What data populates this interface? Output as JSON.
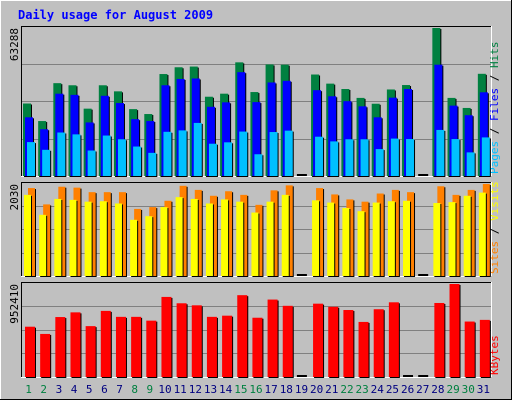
{
  "title": "Daily usage for August 2009",
  "colors": {
    "background": "#c0c0c0",
    "title": "#0000ff",
    "hits": "#008040",
    "files": "#0000ff",
    "pages": "#00c0ff",
    "visits": "#ffff00",
    "sites": "#ff8000",
    "kbytes": "#ff0000",
    "day_weekday": "#000080",
    "day_weekend": "#008040"
  },
  "chart_data": [
    {
      "type": "bar",
      "panel": "requests",
      "axis_max_label": "63288",
      "ylim": [
        0,
        63288
      ],
      "legend": [
        "Pages",
        "Files",
        "Hits"
      ],
      "categories": [
        "1",
        "2",
        "3",
        "4",
        "5",
        "6",
        "7",
        "8",
        "9",
        "10",
        "11",
        "12",
        "13",
        "14",
        "15",
        "16",
        "17",
        "18",
        "19",
        "20",
        "21",
        "22",
        "23",
        "24",
        "25",
        "26",
        "27",
        "28",
        "29",
        "30",
        "31"
      ],
      "series": [
        {
          "name": "Hits",
          "values": [
            31000,
            23500,
            39700,
            38800,
            28800,
            38800,
            36200,
            28600,
            26500,
            43600,
            46500,
            46800,
            33900,
            35200,
            48600,
            35900,
            47700,
            47600,
            0,
            43400,
            39500,
            37200,
            33400,
            30900,
            37000,
            38900,
            0,
            63288,
            33400,
            29100,
            43700
          ]
        },
        {
          "name": "Files",
          "values": [
            25100,
            20000,
            35200,
            34700,
            22900,
            34300,
            31200,
            24300,
            23500,
            38800,
            41500,
            41700,
            29600,
            31500,
            44400,
            31600,
            40000,
            40700,
            0,
            36700,
            34100,
            32000,
            29800,
            25100,
            33500,
            37200,
            0,
            47600,
            30100,
            26000,
            35800
          ]
        },
        {
          "name": "Pages",
          "values": [
            14500,
            11200,
            18600,
            17800,
            10900,
            17300,
            15700,
            12600,
            9900,
            18900,
            19500,
            22700,
            13800,
            14400,
            19000,
            9300,
            18800,
            19400,
            0,
            16800,
            14800,
            15700,
            15700,
            11500,
            16000,
            15800,
            0,
            19700,
            15800,
            10100,
            16500
          ]
        }
      ]
    },
    {
      "type": "bar",
      "panel": "visitors",
      "axis_max_label": "2030",
      "ylim": [
        0,
        2030
      ],
      "legend": [
        "Sites",
        "Visits"
      ],
      "categories": [
        "1",
        "2",
        "3",
        "4",
        "5",
        "6",
        "7",
        "8",
        "9",
        "10",
        "11",
        "12",
        "13",
        "14",
        "15",
        "16",
        "17",
        "18",
        "19",
        "20",
        "21",
        "22",
        "23",
        "24",
        "25",
        "26",
        "27",
        "28",
        "29",
        "30",
        "31"
      ],
      "series": [
        {
          "name": "Sites",
          "values": [
            1940,
            1580,
            1970,
            1950,
            1850,
            1850,
            1850,
            1480,
            1520,
            1660,
            1990,
            1900,
            1770,
            1870,
            1790,
            1570,
            1890,
            2000,
            0,
            1940,
            1800,
            1690,
            1640,
            1820,
            1900,
            1850,
            0,
            1980,
            1790,
            1900,
            2030
          ]
        },
        {
          "name": "Visits",
          "values": [
            1790,
            1350,
            1700,
            1680,
            1640,
            1650,
            1600,
            1240,
            1320,
            1520,
            1740,
            1700,
            1600,
            1690,
            1640,
            1400,
            1640,
            1790,
            0,
            1670,
            1620,
            1500,
            1430,
            1620,
            1650,
            1660,
            0,
            1610,
            1630,
            1770,
            1840
          ]
        }
      ]
    },
    {
      "type": "bar",
      "panel": "kbytes",
      "axis_max_label": "952410",
      "ylim": [
        0,
        952410
      ],
      "legend": [
        "KBytes"
      ],
      "categories": [
        "1",
        "2",
        "3",
        "4",
        "5",
        "6",
        "7",
        "8",
        "9",
        "10",
        "11",
        "12",
        "13",
        "14",
        "15",
        "16",
        "17",
        "18",
        "19",
        "20",
        "21",
        "22",
        "23",
        "24",
        "25",
        "26",
        "27",
        "28",
        "29",
        "30",
        "31"
      ],
      "series": [
        {
          "name": "KBytes",
          "values": [
            515000,
            441000,
            614000,
            662000,
            521000,
            677000,
            616000,
            616000,
            577000,
            820000,
            755000,
            734000,
            616000,
            628000,
            838000,
            607000,
            793000,
            729000,
            0,
            751000,
            719000,
            686000,
            564000,
            694000,
            765000,
            0,
            0,
            758000,
            952410,
            568000,
            585000
          ]
        }
      ]
    }
  ],
  "days": [
    {
      "label": "1",
      "weekend": true
    },
    {
      "label": "2",
      "weekend": true
    },
    {
      "label": "3",
      "weekend": false
    },
    {
      "label": "4",
      "weekend": false
    },
    {
      "label": "5",
      "weekend": false
    },
    {
      "label": "6",
      "weekend": false
    },
    {
      "label": "7",
      "weekend": false
    },
    {
      "label": "8",
      "weekend": true
    },
    {
      "label": "9",
      "weekend": true
    },
    {
      "label": "10",
      "weekend": false
    },
    {
      "label": "11",
      "weekend": false
    },
    {
      "label": "12",
      "weekend": false
    },
    {
      "label": "13",
      "weekend": false
    },
    {
      "label": "14",
      "weekend": false
    },
    {
      "label": "15",
      "weekend": true
    },
    {
      "label": "16",
      "weekend": true
    },
    {
      "label": "17",
      "weekend": false
    },
    {
      "label": "18",
      "weekend": false
    },
    {
      "label": "19",
      "weekend": false
    },
    {
      "label": "20",
      "weekend": false
    },
    {
      "label": "21",
      "weekend": false
    },
    {
      "label": "22",
      "weekend": true
    },
    {
      "label": "23",
      "weekend": true
    },
    {
      "label": "24",
      "weekend": false
    },
    {
      "label": "25",
      "weekend": false
    },
    {
      "label": "26",
      "weekend": false
    },
    {
      "label": "27",
      "weekend": false
    },
    {
      "label": "28",
      "weekend": false
    },
    {
      "label": "29",
      "weekend": true
    },
    {
      "label": "30",
      "weekend": true
    },
    {
      "label": "31",
      "weekend": false
    }
  ]
}
